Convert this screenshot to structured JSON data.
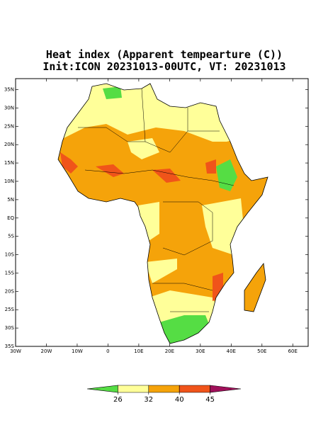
{
  "title": "Heat index (Apparent tempearture (C))",
  "subtitle": "Init:ICON 20231013-00UTC, VT: 20231013",
  "map": {
    "lonlim": [
      -30,
      65
    ],
    "latlim": [
      -35,
      38
    ],
    "lon_ticks": [
      {
        "value": -30,
        "label": "30W"
      },
      {
        "value": -20,
        "label": "20W"
      },
      {
        "value": -10,
        "label": "10W"
      },
      0,
      {
        "value": 10,
        "label": "10E"
      },
      {
        "value": 20,
        "label": "20E"
      },
      {
        "value": 30,
        "label": "30E"
      },
      {
        "value": 40,
        "label": "40E"
      },
      {
        "value": 50,
        "label": "50E"
      },
      {
        "value": 60,
        "label": "60E"
      }
    ],
    "lat_ticks": [
      {
        "value": 35,
        "label": "35N"
      },
      {
        "value": 30,
        "label": "30N"
      },
      {
        "value": 25,
        "label": "25N"
      },
      {
        "value": 20,
        "label": "20N"
      },
      {
        "value": 15,
        "label": "15N"
      },
      {
        "value": 10,
        "label": "10N"
      },
      {
        "value": 5,
        "label": "5N"
      },
      {
        "value": 0,
        "label": "EQ"
      },
      {
        "value": -5,
        "label": "5S"
      },
      {
        "value": -10,
        "label": "10S"
      },
      {
        "value": -15,
        "label": "15S"
      },
      {
        "value": -20,
        "label": "20S"
      },
      {
        "value": -25,
        "label": "25S"
      },
      {
        "value": -30,
        "label": "30S"
      },
      {
        "value": -35,
        "label": "35S"
      }
    ]
  },
  "colorbar": {
    "levels": [
      26,
      32,
      40,
      45
    ],
    "colors": [
      "#55dd44",
      "#ffff99",
      "#f5a30a",
      "#f0541a",
      "#a0105a"
    ]
  }
}
